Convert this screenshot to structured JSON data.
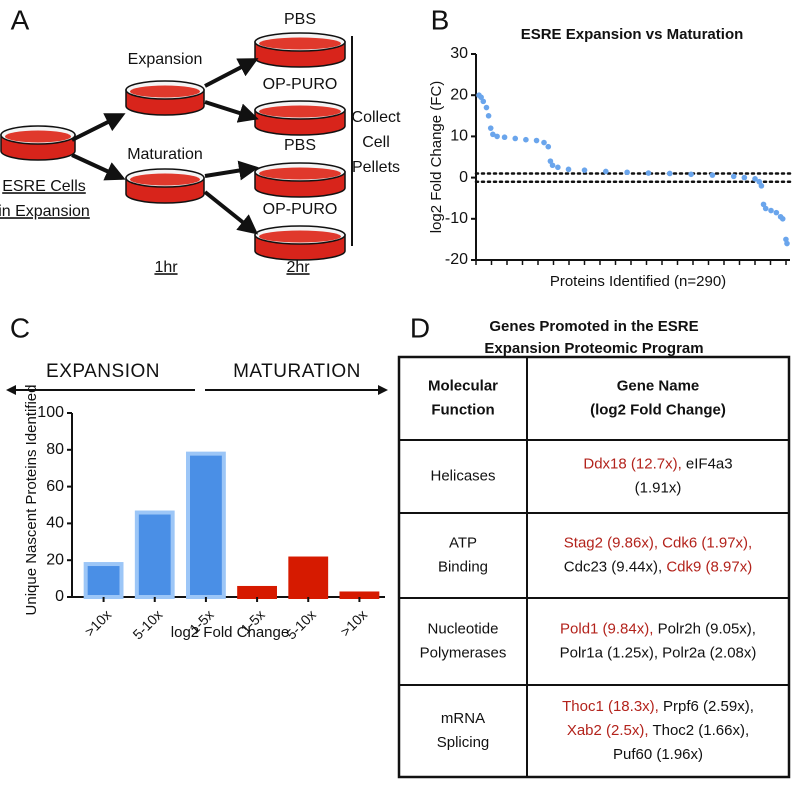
{
  "panel_labels": [
    "A",
    "B",
    "C",
    "D"
  ],
  "diagram": {
    "left_label": [
      "ESRE Cells",
      "in Expansion"
    ],
    "branches": [
      "Expansion",
      "Maturation"
    ],
    "treatments": [
      "PBS",
      "OP-PURO",
      "PBS",
      "OP-PURO"
    ],
    "collect": [
      "Collect",
      "Cell",
      "Pellets"
    ],
    "times": [
      "1hr",
      "2hr"
    ]
  },
  "chart_data": [
    {
      "type": "scatter",
      "title": "ESRE Expansion vs Maturation",
      "y_label": "log2 Fold Change (FC)",
      "x_label": "Proteins Identified (n=290)",
      "x": [
        1,
        3,
        5,
        8,
        10,
        12,
        14,
        18,
        25,
        35,
        45,
        55,
        62,
        66,
        68,
        70,
        75,
        85,
        100,
        120,
        140,
        160,
        180,
        200,
        220,
        240,
        250,
        260,
        264,
        266,
        268,
        270,
        275,
        280,
        284,
        286,
        289,
        290
      ],
      "values": [
        20,
        19.5,
        18.5,
        17,
        15,
        12,
        10.5,
        10,
        9.8,
        9.5,
        9.2,
        9,
        8.5,
        7.5,
        4,
        3,
        2.5,
        2,
        1.8,
        1.5,
        1.3,
        1.1,
        1,
        0.8,
        0.6,
        0.3,
        0,
        -0.3,
        -1,
        -2,
        -6.5,
        -7.5,
        -8,
        -8.5,
        -9.5,
        -10,
        -15,
        -16
      ],
      "color": "#6aa5ec",
      "xlim": [
        1,
        290
      ],
      "ylim": [
        -20,
        30
      ],
      "yticks": [
        -20,
        -10,
        0,
        10,
        20,
        30
      ],
      "hlines": [
        1,
        -1
      ]
    },
    {
      "type": "bar",
      "y_label": "Unique Nascent Proteins Identified",
      "x_label": "log2 Fold Change",
      "arrows": [
        "EXPANSION",
        "MATURATION"
      ],
      "categories": [
        ">10x",
        "5-10x",
        "1-5x",
        "1-5x",
        "5-10x",
        ">10x"
      ],
      "values": [
        19,
        47,
        79,
        6,
        22,
        3
      ],
      "colors": [
        "#4a8fe6",
        "#4a8fe6",
        "#4a8fe6",
        "#d61a00",
        "#d61a00",
        "#d61a00"
      ],
      "edgecolors": [
        "#9cc6f7",
        "#9cc6f7",
        "#9cc6f7",
        "#d61a00",
        "#d61a00",
        "#d61a00"
      ],
      "ylim": [
        0,
        100
      ],
      "yticks": [
        0,
        20,
        40,
        60,
        80,
        100
      ]
    }
  ],
  "table": {
    "title": [
      "Genes Promoted in the ESRE",
      "Expansion Proteomic Program"
    ],
    "header": [
      [
        "Molecular",
        "Function"
      ],
      [
        "Gene Name",
        "(log2 Fold Change)"
      ]
    ],
    "rows": [
      {
        "function": [
          "Helicases"
        ],
        "lines": [
          [
            {
              "text": "Ddx18 (12.7x), ",
              "color": "#b3231c"
            },
            {
              "text": "eIF4a3",
              "color": "#111111"
            }
          ],
          [
            {
              "text": "(1.91x)",
              "color": "#111111"
            }
          ]
        ]
      },
      {
        "function": [
          "ATP",
          "Binding"
        ],
        "lines": [
          [
            {
              "text": "Stag2 (9.86x), Cdk6 (1.97x),",
              "color": "#b3231c"
            }
          ],
          [
            {
              "text": "Cdc23 (9.44x), ",
              "color": "#111111"
            },
            {
              "text": "Cdk9 (8.97x)",
              "color": "#b3231c"
            }
          ]
        ]
      },
      {
        "function": [
          "Nucleotide",
          "Polymerases"
        ],
        "lines": [
          [
            {
              "text": "Pold1 (9.84x), ",
              "color": "#b3231c"
            },
            {
              "text": "Polr2h (9.05x),",
              "color": "#111111"
            }
          ],
          [
            {
              "text": "Polr1a (1.25x), Polr2a (2.08x)",
              "color": "#111111"
            }
          ]
        ]
      },
      {
        "function": [
          "mRNA",
          "Splicing"
        ],
        "lines": [
          [
            {
              "text": "Thoc1 (18.3x), ",
              "color": "#b3231c"
            },
            {
              "text": "Prpf6 (2.59x),",
              "color": "#111111"
            }
          ],
          [
            {
              "text": "Xab2 (2.5x), ",
              "color": "#b3231c"
            },
            {
              "text": "Thoc2 (1.66x),",
              "color": "#111111"
            }
          ],
          [
            {
              "text": "Puf60 (1.96x)",
              "color": "#111111"
            }
          ]
        ]
      }
    ]
  }
}
